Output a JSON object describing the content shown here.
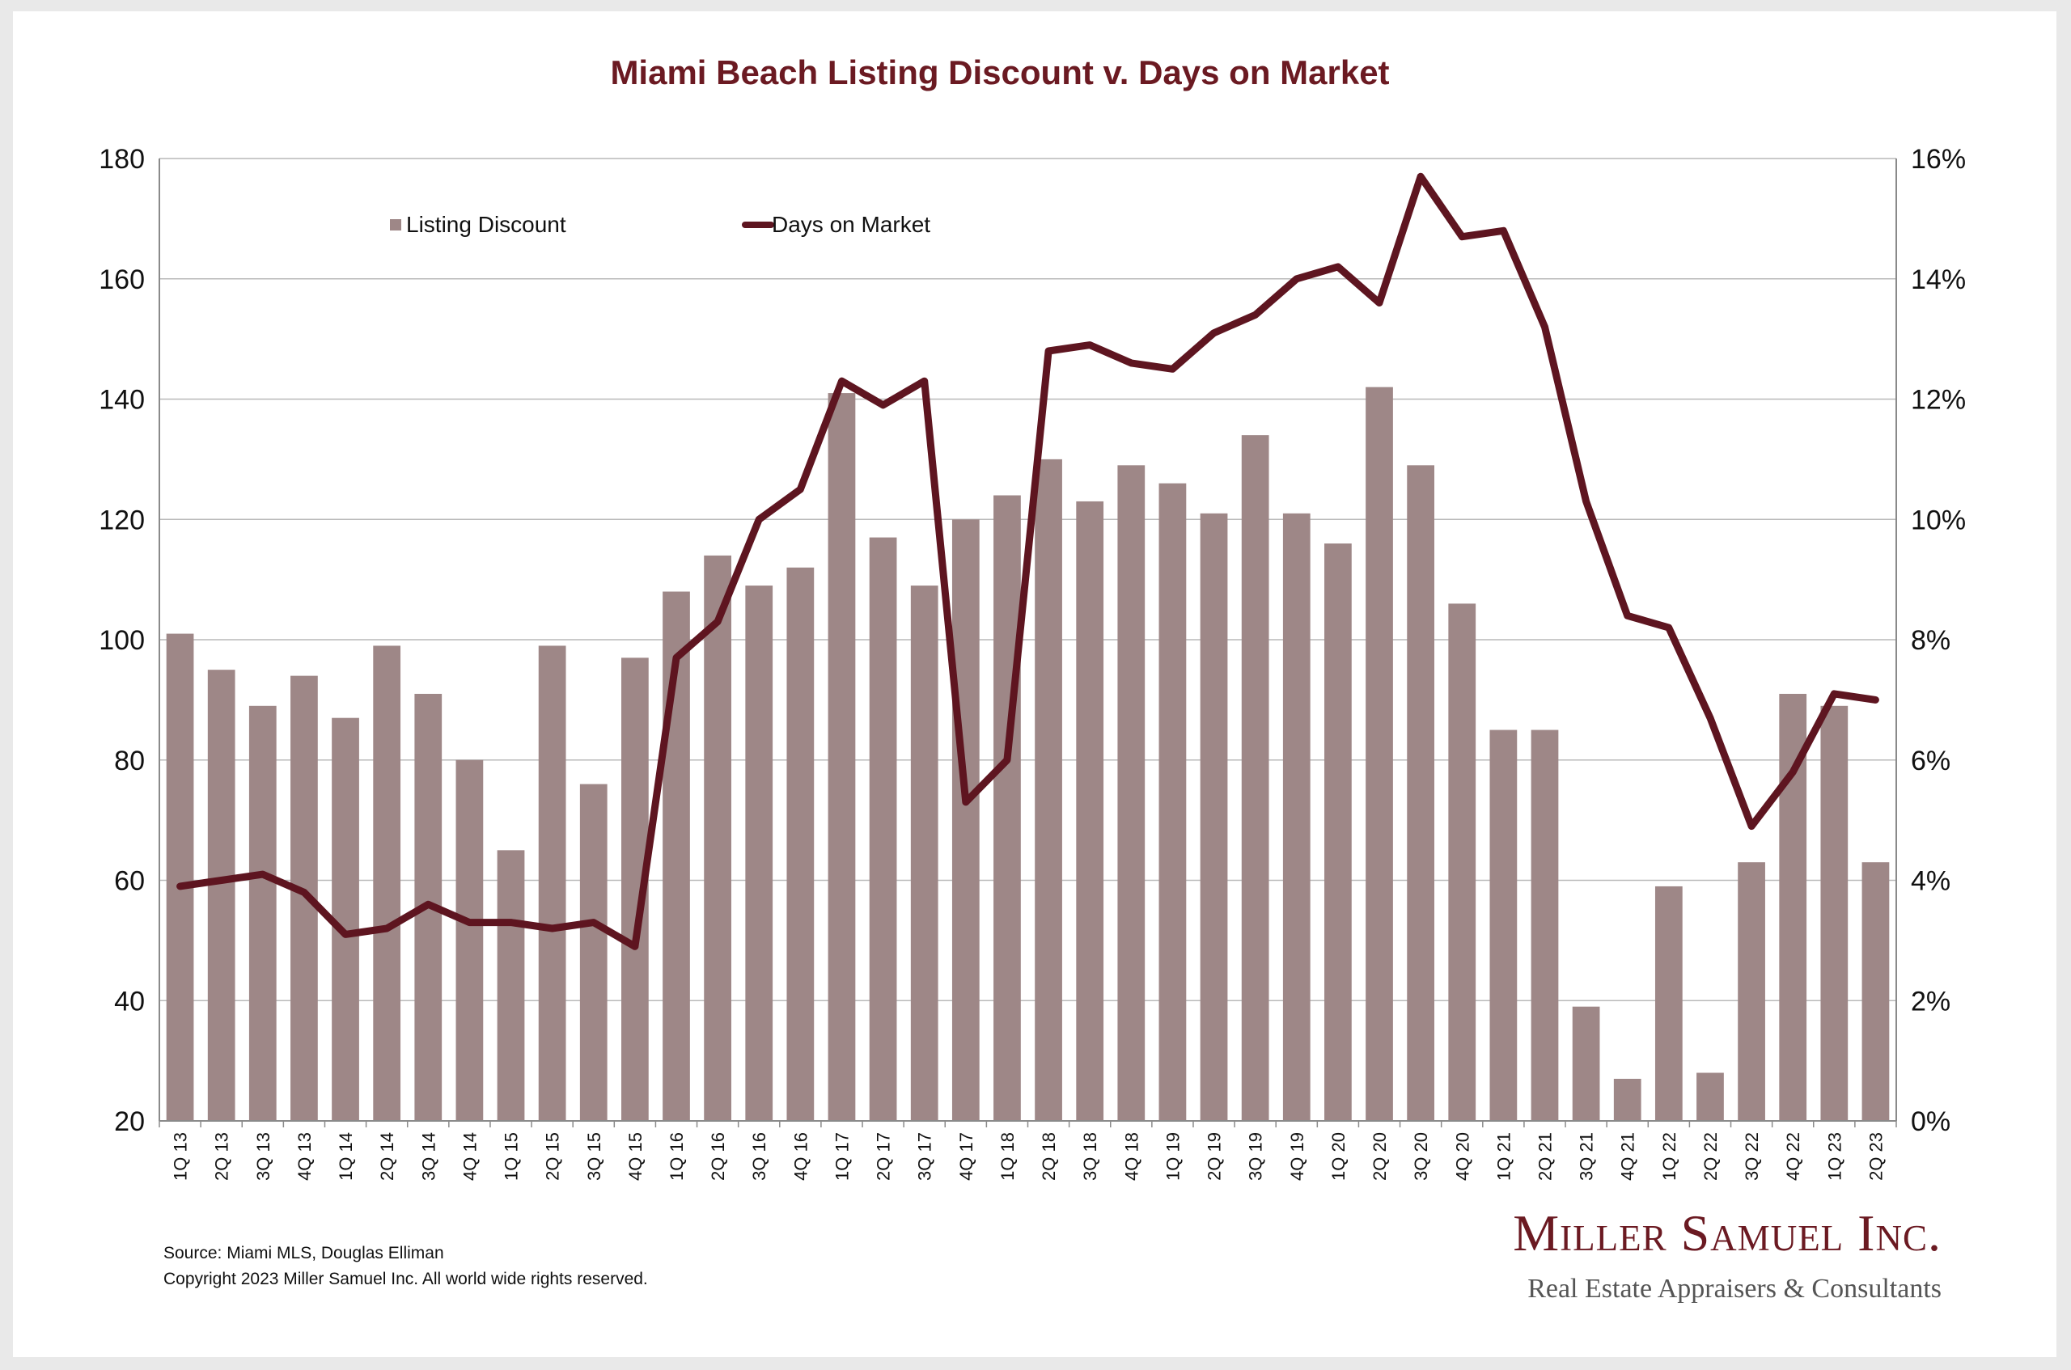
{
  "colors": {
    "bar": "#9e8787",
    "line": "#5e1520",
    "title": "#6b1a22",
    "grid": "#b9b9b9",
    "axis": "#8a8a8a",
    "brand": "#6b1a22",
    "brand_sub": "#555555"
  },
  "chart_data": {
    "type": "bar",
    "title": "Miami Beach Listing Discount v. Days on Market",
    "categories": [
      "1Q 13",
      "2Q 13",
      "3Q 13",
      "4Q 13",
      "1Q 14",
      "2Q 14",
      "3Q 14",
      "4Q 14",
      "1Q 15",
      "2Q 15",
      "3Q 15",
      "4Q 15",
      "1Q 16",
      "2Q 16",
      "3Q 16",
      "4Q 16",
      "1Q 17",
      "2Q 17",
      "3Q 17",
      "4Q 17",
      "1Q 18",
      "2Q 18",
      "3Q 18",
      "4Q 18",
      "1Q 19",
      "2Q 19",
      "3Q 19",
      "4Q 19",
      "1Q 20",
      "2Q 20",
      "3Q 20",
      "4Q 20",
      "1Q 21",
      "2Q 21",
      "3Q 21",
      "4Q 21",
      "1Q 22",
      "2Q 22",
      "3Q 22",
      "4Q 22",
      "1Q 23",
      "2Q 23"
    ],
    "series": [
      {
        "name": "Listing Discount",
        "type": "bar",
        "axis": "left",
        "values": [
          101,
          95,
          89,
          94,
          87,
          99,
          91,
          80,
          65,
          99,
          76,
          97,
          108,
          114,
          109,
          112,
          141,
          117,
          109,
          120,
          124,
          130,
          123,
          129,
          126,
          121,
          134,
          121,
          116,
          142,
          129,
          106,
          85,
          85,
          39,
          27,
          59,
          28,
          63,
          91,
          89,
          63
        ]
      },
      {
        "name": "Days on Market",
        "type": "line",
        "axis": "right",
        "values": [
          3.9,
          4.0,
          4.1,
          3.8,
          3.1,
          3.2,
          3.6,
          3.3,
          3.3,
          3.2,
          3.3,
          2.9,
          7.7,
          8.3,
          10.0,
          10.5,
          12.3,
          11.9,
          12.3,
          5.3,
          6.0,
          12.8,
          12.9,
          12.6,
          12.5,
          13.1,
          13.4,
          14.0,
          14.2,
          13.6,
          15.7,
          14.7,
          14.8,
          13.2,
          10.3,
          8.4,
          8.2,
          6.7,
          4.9,
          5.8,
          7.1,
          7.0
        ]
      }
    ],
    "left_axis": {
      "ylim": [
        20,
        180
      ],
      "ticks": [
        "20",
        "40",
        "60",
        "80",
        "100",
        "120",
        "140",
        "160",
        "180"
      ]
    },
    "right_axis": {
      "ylim": [
        0,
        16
      ],
      "ticks": [
        "0%",
        "2%",
        "4%",
        "6%",
        "8%",
        "10%",
        "12%",
        "14%",
        "16%"
      ]
    },
    "grid": true,
    "legend_position": "top-left"
  },
  "footer": {
    "source": "Source: Miami MLS, Douglas Elliman",
    "copyright": "Copyright 2023 Miller Samuel Inc.  All world wide rights reserved."
  },
  "brand": {
    "name": "Miller Samuel Inc.",
    "tagline": "Real Estate Appraisers & Consultants"
  }
}
